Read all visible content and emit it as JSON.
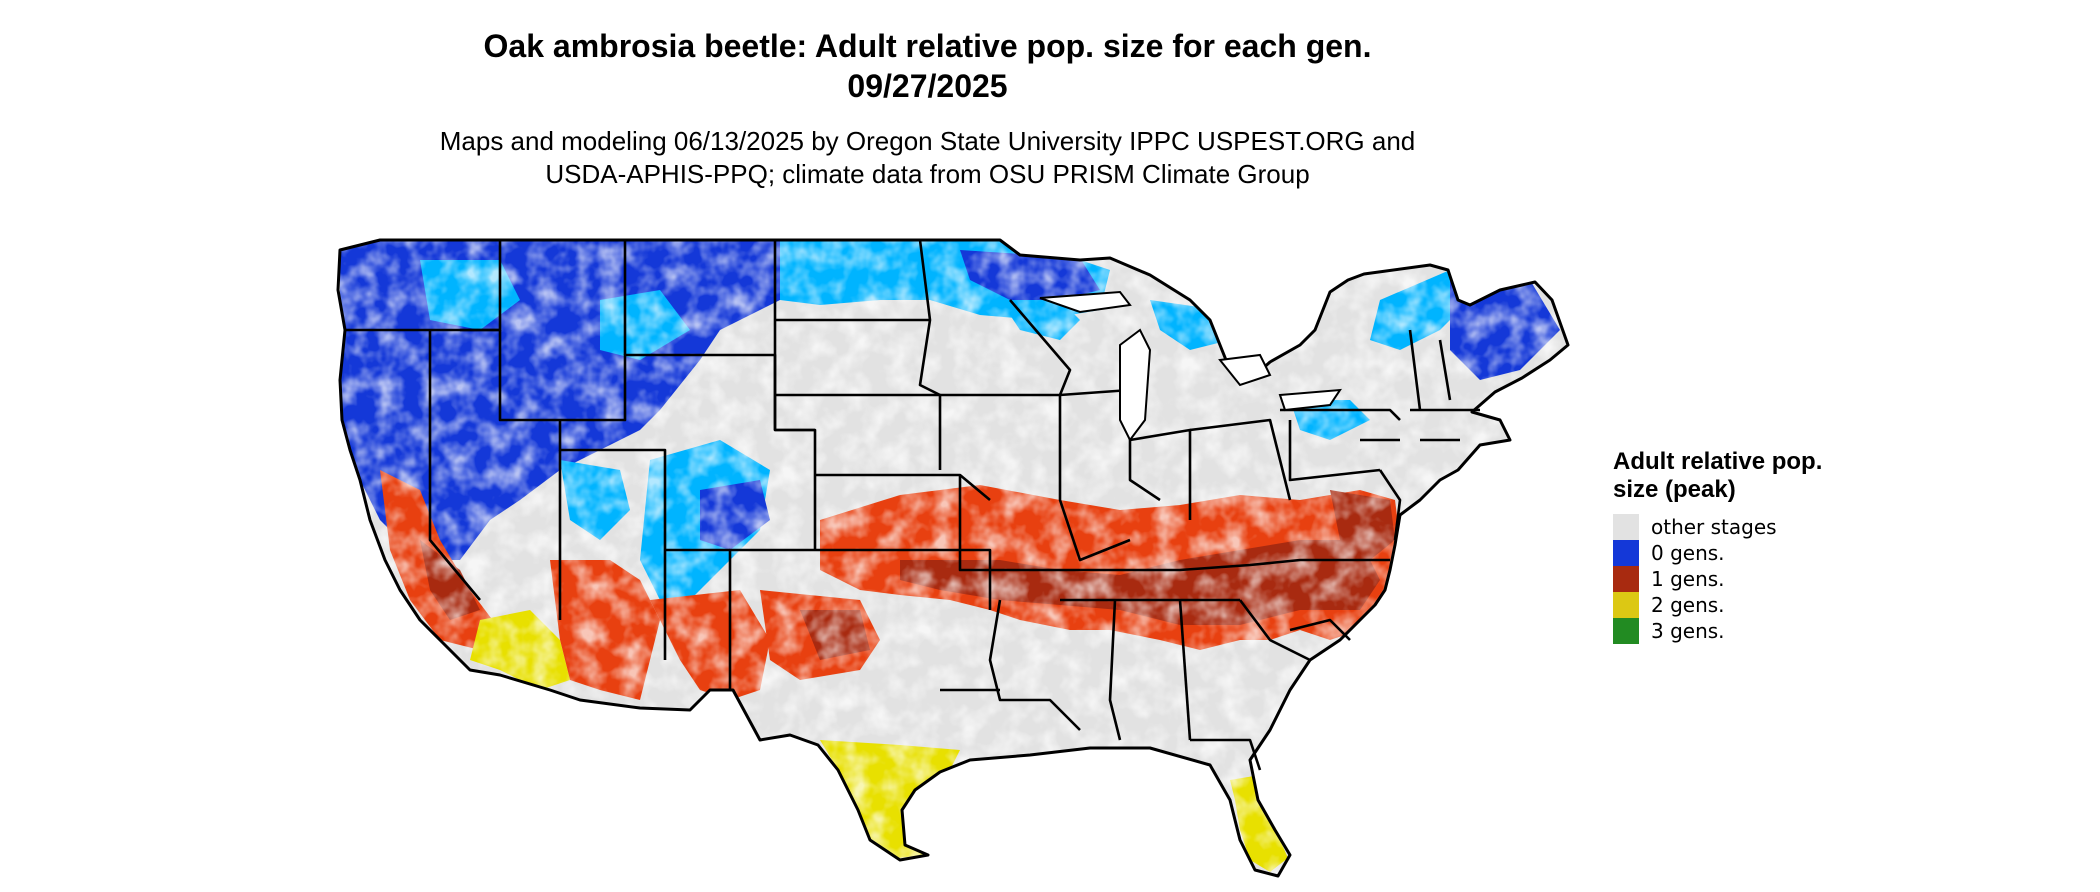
{
  "header": {
    "title_line1": "Oak ambrosia beetle: Adult relative pop. size for each gen.",
    "title_line2": "09/27/2025",
    "subtitle_line1": "Maps and modeling 06/13/2025 by Oregon State University IPPC USPEST.ORG and",
    "subtitle_line2": "USDA-APHIS-PPQ; climate data from OSU PRISM Climate Group"
  },
  "legend": {
    "title": "Adult relative pop. size (peak)",
    "items": [
      {
        "label": "other stages",
        "color": "#e2e2e2"
      },
      {
        "label": "0 gens.",
        "color": "#1438d8"
      },
      {
        "label": "1 gens.",
        "color": "#a82a10"
      },
      {
        "label": "2 gens.",
        "color": "#dcc814"
      },
      {
        "label": "3 gens.",
        "color": "#228b22"
      }
    ]
  },
  "map_colors": {
    "background": "#e2e2e2",
    "cold_light": "#00b4ff",
    "cold_dark": "#1438d8",
    "warm": "#e84010",
    "warm_dark": "#a82a10",
    "hot": "#e8e000",
    "outline": "#000000"
  }
}
